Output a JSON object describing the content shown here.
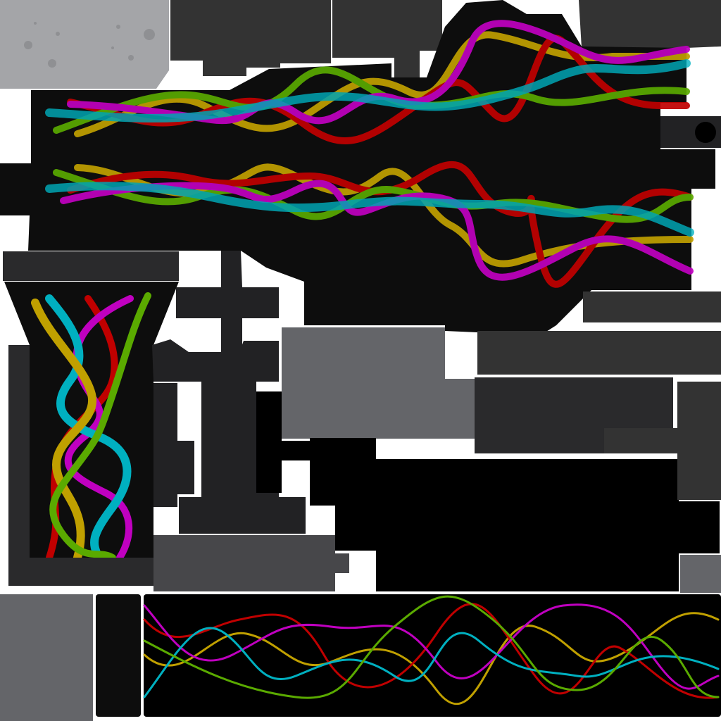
{
  "texture_atlas": {
    "background": "#ffffff",
    "colors": {
      "black": "#000000",
      "near_black": "#0d0d0d",
      "dark_gray": "#222224",
      "mid_dark_gray": "#333333",
      "slate_gray": "#47474a",
      "gray": "#646569",
      "light_gray": "#a4a5a8",
      "speckle_gray": "#8f9093"
    },
    "cable_colors": {
      "red": "#c00000",
      "magenta": "#c000c0",
      "yellow": "#c0a000",
      "green": "#5aaa00",
      "cyan": "#00b0c0"
    },
    "regions": [
      "speckled-panel",
      "gun-body",
      "strap-panel",
      "magazine-panel",
      "trigger-guard",
      "side-panels",
      "bottom-wave-strip"
    ]
  }
}
